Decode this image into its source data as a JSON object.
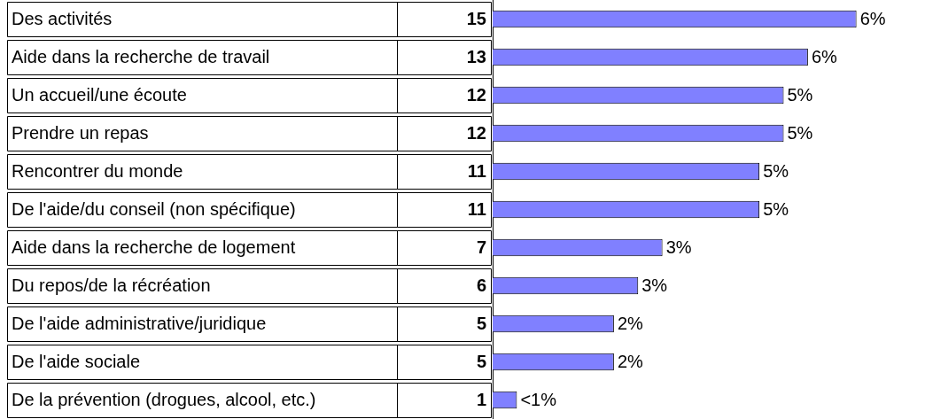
{
  "chart_data": {
    "type": "bar",
    "orientation": "horizontal",
    "categories": [
      "Des activités",
      "Aide dans la recherche de travail",
      "Un accueil/une écoute",
      "Prendre un repas",
      "Rencontrer du monde",
      "De l'aide/du conseil (non spécifique)",
      "Aide dans la recherche de logement",
      "Du repos/de la récréation",
      "De l'aide administrative/juridique",
      "De l'aide sociale",
      "De la prévention (drogues, alcool, etc.)"
    ],
    "values": [
      15,
      13,
      12,
      12,
      11,
      11,
      7,
      6,
      5,
      5,
      1
    ],
    "color": "#8080ff",
    "data_labels": true,
    "annotations": [
      {
        "text": "6%",
        "x": 15,
        "y": "Des activités"
      },
      {
        "text": "6%",
        "x": 13,
        "y": "Aide dans la recherche de travail"
      },
      {
        "text": "5%",
        "x": 12,
        "y": "Un accueil/une écoute"
      },
      {
        "text": "5%",
        "x": 12,
        "y": "Prendre un repas"
      },
      {
        "text": "5%",
        "x": 11,
        "y": "Rencontrer du monde"
      },
      {
        "text": "5%",
        "x": 11,
        "y": "De l'aide/du conseil (non spécifique)"
      },
      {
        "text": "3%",
        "x": 7,
        "y": "Aide dans la recherche de logement"
      },
      {
        "text": "3%",
        "x": 6,
        "y": "Du repos/de la récréation"
      },
      {
        "text": "2%",
        "x": 5,
        "y": "De l'aide administrative/juridique"
      },
      {
        "text": "2%",
        "x": 5,
        "y": "De l'aide sociale"
      },
      {
        "text": "<1%",
        "x": 1,
        "y": "De la prévention (drogues, alcool, etc.)"
      }
    ],
    "tick_labels": "y",
    "grid": false,
    "legend": false
  }
}
